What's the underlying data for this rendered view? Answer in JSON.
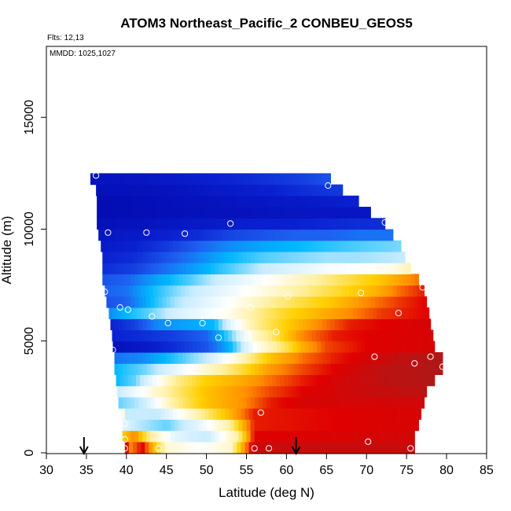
{
  "chart_data": {
    "type": "heatmap",
    "title": "ATOM3 Northeast_Pacific_2 CONBEU_GEOS5",
    "flights_label": "Flts: 12,13",
    "dates_label": "MMDD: 1025,1027",
    "xlabel": "Latitude (deg N)",
    "ylabel": "Altitude (m)",
    "xlim": [
      30,
      85
    ],
    "ylim": [
      0,
      18200
    ],
    "x_ticks": [
      30,
      35,
      40,
      45,
      50,
      55,
      60,
      65,
      70,
      75,
      80,
      85
    ],
    "x_tick_labels": [
      "30",
      "35",
      "40",
      "45",
      "50",
      "55",
      "60",
      "65",
      "70",
      "75",
      "80",
      "85"
    ],
    "y_ticks": [
      0,
      5000,
      10000,
      15000
    ],
    "y_tick_labels": [
      "0",
      "5000",
      "10000",
      "15000"
    ],
    "grid": false,
    "colormap": [
      "#0000a0",
      "#0a20d0",
      "#1e60f0",
      "#00b8ff",
      "#c8ecff",
      "#ffffff",
      "#fff0a0",
      "#ffd000",
      "#ff8c00",
      "#e00000",
      "#b01818"
    ],
    "curtain_rows": [
      {
        "alt": 250,
        "lat_min": 39.8,
        "lat_max": 76.0,
        "profile": [
          [
            39.8,
            0.95
          ],
          [
            40.5,
            0.8
          ],
          [
            42,
            0.9
          ],
          [
            45,
            0.55
          ],
          [
            49,
            0.5
          ],
          [
            53,
            0.55
          ],
          [
            56,
            0.95
          ],
          [
            76,
            0.95
          ]
        ]
      },
      {
        "alt": 750,
        "lat_min": 39.5,
        "lat_max": 76.0,
        "profile": [
          [
            39.5,
            0.7
          ],
          [
            41,
            0.8
          ],
          [
            43,
            0.6
          ],
          [
            46,
            0.45
          ],
          [
            50,
            0.4
          ],
          [
            54,
            0.6
          ],
          [
            56,
            0.9
          ],
          [
            76,
            0.93
          ]
        ]
      },
      {
        "alt": 1250,
        "lat_min": 39.5,
        "lat_max": 76.5,
        "profile": [
          [
            39.5,
            0.45
          ],
          [
            41,
            0.4
          ],
          [
            45,
            0.35
          ],
          [
            49,
            0.45
          ],
          [
            53,
            0.6
          ],
          [
            56,
            0.88
          ],
          [
            76.5,
            0.92
          ]
        ]
      },
      {
        "alt": 1750,
        "lat_min": 39.3,
        "lat_max": 76.8,
        "profile": [
          [
            39.3,
            0.6
          ],
          [
            40,
            0.4
          ],
          [
            44,
            0.4
          ],
          [
            48,
            0.55
          ],
          [
            52,
            0.7
          ],
          [
            56,
            0.88
          ],
          [
            76.8,
            0.92
          ]
        ]
      },
      {
        "alt": 2250,
        "lat_min": 39.0,
        "lat_max": 77.2,
        "profile": [
          [
            39,
            0.35
          ],
          [
            42,
            0.4
          ],
          [
            46,
            0.6
          ],
          [
            50,
            0.72
          ],
          [
            54,
            0.78
          ],
          [
            58,
            0.88
          ],
          [
            62,
            0.92
          ],
          [
            77.2,
            0.93
          ]
        ]
      },
      {
        "alt": 2750,
        "lat_min": 38.8,
        "lat_max": 77.5,
        "profile": [
          [
            38.8,
            0.4
          ],
          [
            42,
            0.5
          ],
          [
            46,
            0.62
          ],
          [
            50,
            0.72
          ],
          [
            54,
            0.78
          ],
          [
            58,
            0.85
          ],
          [
            62,
            0.9
          ],
          [
            70,
            0.95
          ],
          [
            77.5,
            0.97
          ]
        ]
      },
      {
        "alt": 3250,
        "lat_min": 38.7,
        "lat_max": 78.5,
        "profile": [
          [
            38.7,
            0.3
          ],
          [
            41,
            0.35
          ],
          [
            43,
            0.45
          ],
          [
            46,
            0.6
          ],
          [
            50,
            0.7
          ],
          [
            54,
            0.75
          ],
          [
            58,
            0.82
          ],
          [
            62,
            0.88
          ],
          [
            66,
            0.92
          ],
          [
            72,
            0.97
          ],
          [
            78.5,
            1.0
          ]
        ]
      },
      {
        "alt": 3750,
        "lat_min": 38.5,
        "lat_max": 79.5,
        "profile": [
          [
            38.5,
            0.3
          ],
          [
            42,
            0.35
          ],
          [
            46,
            0.45
          ],
          [
            50,
            0.55
          ],
          [
            54,
            0.65
          ],
          [
            58,
            0.78
          ],
          [
            62,
            0.85
          ],
          [
            66,
            0.9
          ],
          [
            72,
            0.97
          ],
          [
            79.5,
            1.0
          ]
        ]
      },
      {
        "alt": 4250,
        "lat_min": 38.5,
        "lat_max": 79.5,
        "profile": [
          [
            38.5,
            0.22
          ],
          [
            42,
            0.25
          ],
          [
            46,
            0.32
          ],
          [
            50,
            0.4
          ],
          [
            54,
            0.55
          ],
          [
            58,
            0.72
          ],
          [
            62,
            0.82
          ],
          [
            66,
            0.88
          ],
          [
            70,
            0.92
          ],
          [
            75,
            0.97
          ],
          [
            79.5,
            1.0
          ]
        ]
      },
      {
        "alt": 4750,
        "lat_min": 38.3,
        "lat_max": 78.5,
        "profile": [
          [
            38.3,
            0.05
          ],
          [
            42,
            0.08
          ],
          [
            46,
            0.12
          ],
          [
            50,
            0.18
          ],
          [
            53,
            0.3
          ],
          [
            56,
            0.5
          ],
          [
            60,
            0.65
          ],
          [
            62,
            0.75
          ],
          [
            65,
            0.85
          ],
          [
            70,
            0.9
          ],
          [
            78.5,
            0.92
          ]
        ]
      },
      {
        "alt": 5250,
        "lat_min": 38.2,
        "lat_max": 78.3,
        "profile": [
          [
            38.2,
            0.1
          ],
          [
            42,
            0.12
          ],
          [
            46,
            0.15
          ],
          [
            50,
            0.2
          ],
          [
            53,
            0.35
          ],
          [
            56,
            0.55
          ],
          [
            58,
            0.62
          ],
          [
            62,
            0.8
          ],
          [
            66,
            0.88
          ],
          [
            70,
            0.9
          ],
          [
            78.3,
            0.92
          ]
        ]
      },
      {
        "alt": 5750,
        "lat_min": 38.0,
        "lat_max": 78.0,
        "profile": [
          [
            38,
            0.1
          ],
          [
            41,
            0.15
          ],
          [
            44,
            0.25
          ],
          [
            48,
            0.28
          ],
          [
            51,
            0.3
          ],
          [
            53,
            0.45
          ],
          [
            56,
            0.6
          ],
          [
            60,
            0.7
          ],
          [
            64,
            0.8
          ],
          [
            68,
            0.88
          ],
          [
            72,
            0.9
          ],
          [
            78,
            0.92
          ]
        ]
      },
      {
        "alt": 6250,
        "lat_min": 37.8,
        "lat_max": 77.8,
        "profile": [
          [
            37.8,
            0.25
          ],
          [
            40,
            0.3
          ],
          [
            43,
            0.35
          ],
          [
            46,
            0.42
          ],
          [
            50,
            0.48
          ],
          [
            53,
            0.52
          ],
          [
            56,
            0.6
          ],
          [
            60,
            0.68
          ],
          [
            64,
            0.74
          ],
          [
            68,
            0.8
          ],
          [
            72,
            0.86
          ],
          [
            77.8,
            0.9
          ]
        ]
      },
      {
        "alt": 6750,
        "lat_min": 37.5,
        "lat_max": 77.5,
        "profile": [
          [
            37.5,
            0.18
          ],
          [
            40,
            0.2
          ],
          [
            43,
            0.3
          ],
          [
            46,
            0.38
          ],
          [
            50,
            0.45
          ],
          [
            54,
            0.52
          ],
          [
            58,
            0.6
          ],
          [
            62,
            0.66
          ],
          [
            66,
            0.72
          ],
          [
            70,
            0.8
          ],
          [
            74,
            0.86
          ],
          [
            77.5,
            0.9
          ]
        ]
      },
      {
        "alt": 7250,
        "lat_min": 37.3,
        "lat_max": 77.2,
        "profile": [
          [
            37.3,
            0.2
          ],
          [
            40,
            0.22
          ],
          [
            43,
            0.3
          ],
          [
            47,
            0.38
          ],
          [
            51,
            0.44
          ],
          [
            55,
            0.5
          ],
          [
            59,
            0.56
          ],
          [
            63,
            0.62
          ],
          [
            67,
            0.68
          ],
          [
            71,
            0.74
          ],
          [
            74,
            0.82
          ],
          [
            77.2,
            0.88
          ]
        ]
      },
      {
        "alt": 7750,
        "lat_min": 37.0,
        "lat_max": 76.5,
        "profile": [
          [
            37,
            0.18
          ],
          [
            40,
            0.2
          ],
          [
            44,
            0.28
          ],
          [
            48,
            0.34
          ],
          [
            52,
            0.42
          ],
          [
            56,
            0.48
          ],
          [
            60,
            0.54
          ],
          [
            64,
            0.6
          ],
          [
            68,
            0.66
          ],
          [
            72,
            0.72
          ],
          [
            76.5,
            0.82
          ]
        ]
      },
      {
        "alt": 8250,
        "lat_min": 37.0,
        "lat_max": 75.5,
        "profile": [
          [
            37,
            0.12
          ],
          [
            41,
            0.15
          ],
          [
            45,
            0.22
          ],
          [
            49,
            0.28
          ],
          [
            53,
            0.34
          ],
          [
            57,
            0.4
          ],
          [
            61,
            0.44
          ],
          [
            65,
            0.48
          ],
          [
            69,
            0.5
          ],
          [
            73,
            0.52
          ],
          [
            75.5,
            0.58
          ]
        ]
      },
      {
        "alt": 8750,
        "lat_min": 37.0,
        "lat_max": 74.8,
        "profile": [
          [
            37,
            0.1
          ],
          [
            41,
            0.12
          ],
          [
            45,
            0.18
          ],
          [
            49,
            0.24
          ],
          [
            53,
            0.3
          ],
          [
            57,
            0.34
          ],
          [
            61,
            0.36
          ],
          [
            65,
            0.38
          ],
          [
            69,
            0.38
          ],
          [
            74.8,
            0.4
          ]
        ]
      },
      {
        "alt": 9250,
        "lat_min": 36.8,
        "lat_max": 74.3,
        "profile": [
          [
            36.8,
            0.08
          ],
          [
            41,
            0.1
          ],
          [
            45,
            0.14
          ],
          [
            49,
            0.2
          ],
          [
            53,
            0.25
          ],
          [
            57,
            0.28
          ],
          [
            61,
            0.3
          ],
          [
            65,
            0.32
          ],
          [
            69,
            0.34
          ],
          [
            74.3,
            0.36
          ]
        ]
      },
      {
        "alt": 9750,
        "lat_min": 36.5,
        "lat_max": 73.3,
        "profile": [
          [
            36.5,
            0.07
          ],
          [
            41,
            0.08
          ],
          [
            45,
            0.1
          ],
          [
            49,
            0.12
          ],
          [
            53,
            0.16
          ],
          [
            57,
            0.18
          ],
          [
            61,
            0.2
          ],
          [
            65,
            0.2
          ],
          [
            69,
            0.22
          ],
          [
            73.3,
            0.22
          ]
        ]
      },
      {
        "alt": 10250,
        "lat_min": 36.3,
        "lat_max": 72.3,
        "profile": [
          [
            36.3,
            0.05
          ],
          [
            41,
            0.06
          ],
          [
            45,
            0.07
          ],
          [
            49,
            0.08
          ],
          [
            53,
            0.09
          ],
          [
            57,
            0.1
          ],
          [
            61,
            0.1
          ],
          [
            65,
            0.11
          ],
          [
            69,
            0.12
          ],
          [
            72.3,
            0.12
          ]
        ]
      },
      {
        "alt": 10750,
        "lat_min": 36.3,
        "lat_max": 70.5,
        "profile": [
          [
            36.3,
            0.04
          ],
          [
            45,
            0.05
          ],
          [
            55,
            0.06
          ],
          [
            62,
            0.07
          ],
          [
            70.5,
            0.07
          ]
        ]
      },
      {
        "alt": 11250,
        "lat_min": 36.3,
        "lat_max": 69.0,
        "profile": [
          [
            36.3,
            0.04
          ],
          [
            45,
            0.05
          ],
          [
            55,
            0.07
          ],
          [
            62,
            0.08
          ],
          [
            69,
            0.1
          ]
        ]
      },
      {
        "alt": 11750,
        "lat_min": 36.2,
        "lat_max": 67.0,
        "profile": [
          [
            36.2,
            0.05
          ],
          [
            45,
            0.06
          ],
          [
            52,
            0.08
          ],
          [
            58,
            0.1
          ],
          [
            62,
            0.12
          ],
          [
            67,
            0.14
          ]
        ]
      },
      {
        "alt": 12250,
        "lat_min": 35.5,
        "lat_max": 65.5,
        "profile": [
          [
            35.5,
            0.06
          ],
          [
            42,
            0.07
          ],
          [
            48,
            0.09
          ],
          [
            54,
            0.11
          ],
          [
            58,
            0.13
          ],
          [
            62,
            0.15
          ],
          [
            65.5,
            0.18
          ]
        ]
      }
    ],
    "row_height_m": 500,
    "sample_points": [
      [
        36.2,
        12400
      ],
      [
        65.2,
        11950
      ],
      [
        42.5,
        9850
      ],
      [
        37.7,
        9850
      ],
      [
        47.3,
        9800
      ],
      [
        53.0,
        10250
      ],
      [
        72.3,
        10300
      ],
      [
        37.3,
        7200
      ],
      [
        39.2,
        6500
      ],
      [
        40.2,
        6400
      ],
      [
        43.2,
        6100
      ],
      [
        45.2,
        5800
      ],
      [
        49.5,
        5800
      ],
      [
        55.5,
        6500
      ],
      [
        60.2,
        7000
      ],
      [
        69.3,
        7150
      ],
      [
        74.0,
        6250
      ],
      [
        77.0,
        7400
      ],
      [
        58.7,
        5400
      ],
      [
        51.5,
        5150
      ],
      [
        38.3,
        4600
      ],
      [
        71.0,
        4300
      ],
      [
        76.0,
        4000
      ],
      [
        78.0,
        4300
      ],
      [
        79.5,
        3850
      ],
      [
        56.8,
        1800
      ],
      [
        39.8,
        1300
      ],
      [
        39.8,
        600
      ],
      [
        70.2,
        500
      ],
      [
        39.8,
        200
      ],
      [
        44.0,
        200
      ],
      [
        50.5,
        200
      ],
      [
        56.0,
        200
      ],
      [
        57.8,
        200
      ],
      [
        75.5,
        200
      ]
    ],
    "arrows_lat": [
      34.7,
      61.2
    ]
  }
}
